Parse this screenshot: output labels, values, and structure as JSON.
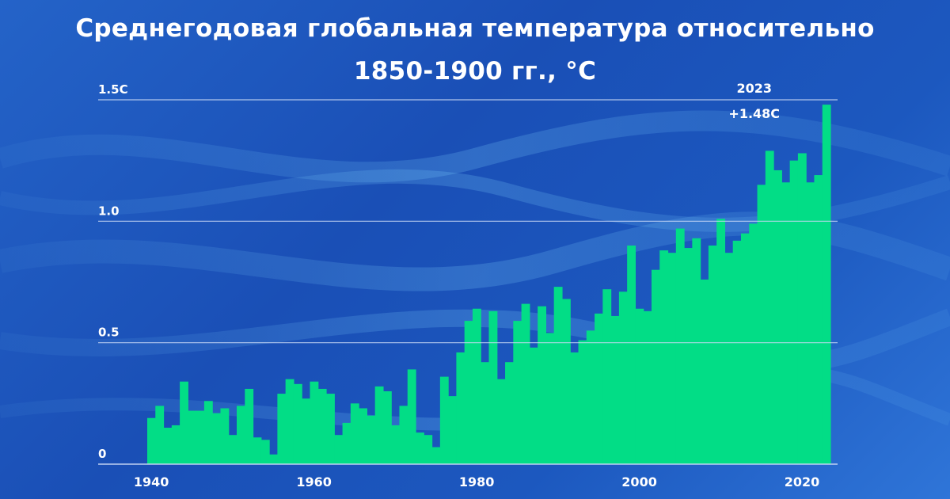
{
  "title_line1": "Среднегодовая глобальная температура относительно",
  "title_line2": "1850-1900 гг., °C",
  "colors": {
    "bar": "#02dd86",
    "grid": "#c9d8f5",
    "text": "#ffffff"
  },
  "chart_data": {
    "type": "bar",
    "title": "Среднегодовая глобальная температура относительно 1850-1900 гг., °C",
    "xlabel": "",
    "ylabel": "",
    "ylim": [
      0,
      1.5
    ],
    "grid": true,
    "y_ticks": [
      {
        "value": 0,
        "label": "0"
      },
      {
        "value": 0.5,
        "label": "0.5"
      },
      {
        "value": 1.0,
        "label": "1.0"
      },
      {
        "value": 1.5,
        "label": "1.5C"
      }
    ],
    "x_ticks": [
      {
        "year": 1940,
        "label": "1940"
      },
      {
        "year": 1960,
        "label": "1960"
      },
      {
        "year": 1980,
        "label": "1980"
      },
      {
        "year": 2000,
        "label": "2000"
      },
      {
        "year": 2020,
        "label": "2020"
      }
    ],
    "years": [
      1940,
      1941,
      1942,
      1943,
      1944,
      1945,
      1946,
      1947,
      1948,
      1949,
      1950,
      1951,
      1952,
      1953,
      1954,
      1955,
      1956,
      1957,
      1958,
      1959,
      1960,
      1961,
      1962,
      1963,
      1964,
      1965,
      1966,
      1967,
      1968,
      1969,
      1970,
      1971,
      1972,
      1973,
      1974,
      1975,
      1976,
      1977,
      1978,
      1979,
      1980,
      1981,
      1982,
      1983,
      1984,
      1985,
      1986,
      1987,
      1988,
      1989,
      1990,
      1991,
      1992,
      1993,
      1994,
      1995,
      1996,
      1997,
      1998,
      1999,
      2000,
      2001,
      2002,
      2003,
      2004,
      2005,
      2006,
      2007,
      2008,
      2009,
      2010,
      2011,
      2012,
      2013,
      2014,
      2015,
      2016,
      2017,
      2018,
      2019,
      2020,
      2021,
      2022,
      2023
    ],
    "values": [
      0.19,
      0.24,
      0.15,
      0.16,
      0.34,
      0.22,
      0.22,
      0.26,
      0.21,
      0.23,
      0.12,
      0.24,
      0.31,
      0.11,
      0.1,
      0.04,
      0.29,
      0.35,
      0.33,
      0.27,
      0.34,
      0.31,
      0.29,
      0.12,
      0.17,
      0.25,
      0.23,
      0.2,
      0.32,
      0.3,
      0.16,
      0.24,
      0.39,
      0.13,
      0.12,
      0.07,
      0.36,
      0.28,
      0.46,
      0.59,
      0.64,
      0.42,
      0.63,
      0.35,
      0.42,
      0.59,
      0.66,
      0.48,
      0.65,
      0.54,
      0.73,
      0.68,
      0.46,
      0.51,
      0.55,
      0.62,
      0.72,
      0.61,
      0.71,
      0.9,
      0.64,
      0.63,
      0.8,
      0.88,
      0.87,
      0.97,
      0.89,
      0.93,
      0.76,
      0.9,
      1.01,
      0.87,
      0.92,
      0.95,
      0.99,
      1.15,
      1.29,
      1.21,
      1.16,
      1.25,
      1.28,
      1.16,
      1.19,
      1.48
    ],
    "annotation": {
      "year": 2023,
      "year_label": "2023",
      "value_label": "+1.48C"
    }
  }
}
